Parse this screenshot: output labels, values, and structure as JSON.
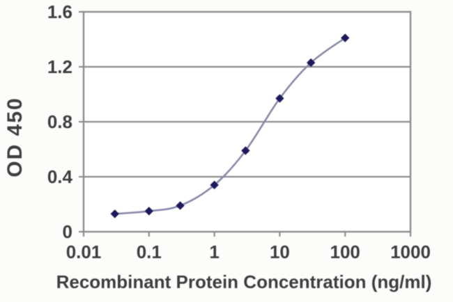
{
  "colors": {
    "background": "#fcfcfa",
    "plot_background": "#ffffff",
    "grid": "#8d8d8d",
    "text": "#3e3e3e"
  },
  "chart_data": {
    "type": "line",
    "title": "",
    "xlabel": "Recombinant Protein Concentration (ng/ml)",
    "ylabel": "OD 450",
    "x_scale": "log",
    "xlim": [
      0.01,
      1000
    ],
    "ylim": [
      0,
      1.6
    ],
    "x_ticks": [
      0.01,
      0.1,
      1,
      10,
      100,
      1000
    ],
    "x_tick_labels": [
      "0.01",
      "0.1",
      "1",
      "10",
      "100",
      "1000"
    ],
    "y_ticks": [
      0,
      0.4,
      0.8,
      1.2,
      1.6
    ],
    "y_tick_labels": [
      "0",
      "0.4",
      "0.8",
      "1.2",
      "1.6"
    ],
    "grid": "horizontal",
    "legend": "none",
    "series": [
      {
        "name": "OD 450",
        "marker": "diamond",
        "marker_color": "#1e1a5e",
        "line_color": "#8888aa",
        "smooth": true,
        "points": [
          {
            "x": 0.03,
            "y": 0.13
          },
          {
            "x": 0.1,
            "y": 0.15
          },
          {
            "x": 0.3,
            "y": 0.19
          },
          {
            "x": 1,
            "y": 0.34
          },
          {
            "x": 3,
            "y": 0.59
          },
          {
            "x": 10,
            "y": 0.97
          },
          {
            "x": 30,
            "y": 1.23
          },
          {
            "x": 100,
            "y": 1.41
          }
        ]
      }
    ]
  }
}
